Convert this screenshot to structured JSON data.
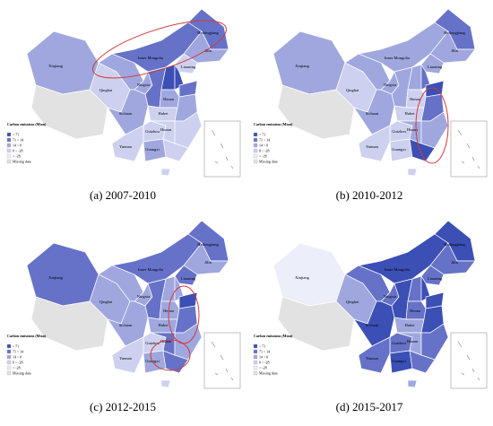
{
  "legend": {
    "title": "Carbon emissions (Mton)",
    "items": [
      {
        "label": "> 71",
        "color": "#3b4fb5"
      },
      {
        "label": "71 ~ 14",
        "color": "#6672c8"
      },
      {
        "label": "14 ~ 0",
        "color": "#9fa7de"
      },
      {
        "label": "0 ~ -28",
        "color": "#cdd1ef"
      },
      {
        "label": "< -28",
        "color": "#eceefa"
      },
      {
        "label": "Missing data",
        "color": "#e2e2e2"
      }
    ]
  },
  "province_labels": [
    "Xinjiang",
    "Qinghai",
    "Inner Mongolia",
    "Heilongjiang",
    "Jilin",
    "Liaoning",
    "Ningxia",
    "Sichuan",
    "Henan",
    "Hubei",
    "Hunan",
    "Guizhou",
    "Yunnan",
    "Guangxi"
  ],
  "panels": [
    {
      "caption": "(a) 2007-2010",
      "fills": [
        "#9fa7de",
        "#e2e2e2",
        "#cdd1ef",
        "#9fa7de",
        "#6672c8",
        "#6672c8",
        "#9fa7de",
        "#cdd1ef",
        "#9fa7de",
        "#6672c8",
        "#3b4fb5",
        "#3b4fb5",
        "#6672c8",
        "#9fa7de",
        "#9fa7de",
        "#cdd1ef",
        "#9fa7de",
        "#cdd1ef",
        "#cdd1ef",
        "#cdd1ef",
        "#cdd1ef",
        "#9fa7de",
        "#cdd1ef",
        "#cdd1ef"
      ]
    },
    {
      "caption": "(b) 2010-2012",
      "fills": [
        "#9fa7de",
        "#e2e2e2",
        "#cdd1ef",
        "#9fa7de",
        "#9fa7de",
        "#6672c8",
        "#9fa7de",
        "#9fa7de",
        "#9fa7de",
        "#9fa7de",
        "#9fa7de",
        "#6672c8",
        "#3b4fb5",
        "#cdd1ef",
        "#9fa7de",
        "#cdd1ef",
        "#6672c8",
        "#cdd1ef",
        "#9fa7de",
        "#9fa7de",
        "#cdd1ef",
        "#cdd1ef",
        "#3b4fb5",
        "#cdd1ef"
      ]
    },
    {
      "caption": "(c) 2012-2015",
      "fills": [
        "#6672c8",
        "#e2e2e2",
        "#9fa7de",
        "#9fa7de",
        "#6672c8",
        "#6672c8",
        "#9fa7de",
        "#6672c8",
        "#9fa7de",
        "#6672c8",
        "#9fa7de",
        "#9fa7de",
        "#3b4fb5",
        "#9fa7de",
        "#9fa7de",
        "#9fa7de",
        "#6672c8",
        "#cdd1ef",
        "#6672c8",
        "#9fa7de",
        "#cdd1ef",
        "#9fa7de",
        "#6672c8",
        "#cdd1ef"
      ]
    },
    {
      "caption": "(d) 2015-2017",
      "fills": [
        "#eceefa",
        "#e2e2e2",
        "#9fa7de",
        "#6672c8",
        "#3b4fb5",
        "#3b4fb5",
        "#6672c8",
        "#6672c8",
        "#6672c8",
        "#3b4fb5",
        "#6672c8",
        "#3b4fb5",
        "#3b4fb5",
        "#6672c8",
        "#3b4fb5",
        "#9fa7de",
        "#3b4fb5",
        "#6672c8",
        "#9fa7de",
        "#6672c8",
        "#6672c8",
        "#3b4fb5",
        "#6672c8",
        "#9fa7de"
      ]
    }
  ]
}
